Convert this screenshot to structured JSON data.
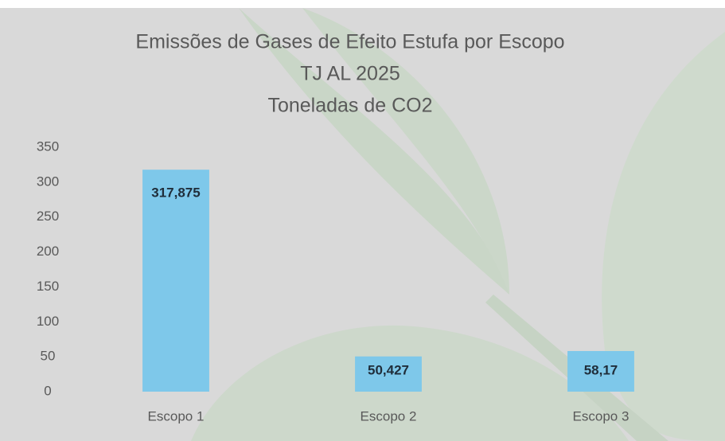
{
  "chart_data": {
    "type": "bar",
    "title": "Emissões de Gases de Efeito Estufa por Escopo",
    "subtitle": [
      "TJ AL 2025",
      "Toneladas de CO2"
    ],
    "categories": [
      "Escopo 1",
      "Escopo 2",
      "Escopo 3"
    ],
    "values": [
      317.875,
      50.427,
      58.17
    ],
    "value_labels": [
      "317,875",
      "50,427",
      "58,17"
    ],
    "color": "#7ec8ea",
    "ylim": [
      0,
      350
    ],
    "yticks": [
      0,
      50,
      100,
      150,
      200,
      250,
      300,
      350
    ],
    "grid": false
  }
}
